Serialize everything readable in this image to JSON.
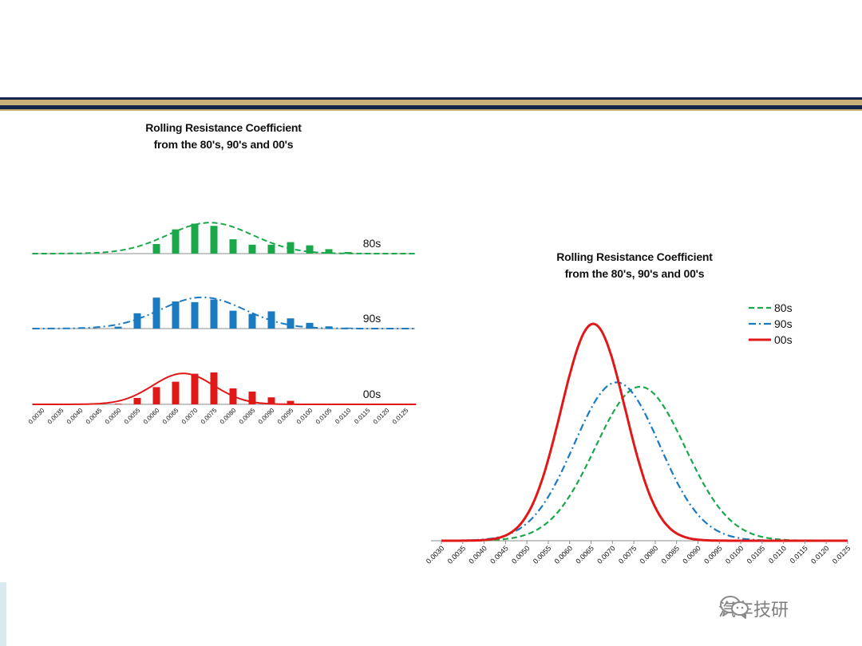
{
  "colors": {
    "green": "#1aa84a",
    "blue": "#1a7ac2",
    "red": "#e01818",
    "header_dark": "#15264a",
    "header_gold": "#c9b27a"
  },
  "watermark": {
    "text": "汽车技研",
    "icon": "wechat-icon"
  },
  "chart_data": [
    {
      "type": "bar",
      "title_lines": [
        "Rolling Resistance Coefficient",
        "from the 80's, 90's and 00's"
      ],
      "categories": [
        "0.0030",
        "0.0035",
        "0.0040",
        "0.0045",
        "0.0050",
        "0.0055",
        "0.0060",
        "0.0065",
        "0.0070",
        "0.0075",
        "0.0080",
        "0.0085",
        "0.0090",
        "0.0095",
        "0.0100",
        "0.0105",
        "0.0110",
        "0.0115",
        "0.0120",
        "0.0125"
      ],
      "panels": [
        {
          "name": "80s",
          "values": [
            0,
            0,
            0,
            0,
            0,
            0,
            0.3,
            0.76,
            0.94,
            0.87,
            0.45,
            0.28,
            0.28,
            0.36,
            0.26,
            0.14,
            0.05,
            0.02,
            0,
            0
          ],
          "curve_mean": 0.0074,
          "curve_sd": 0.0011,
          "curve_peak": 0.97,
          "line_style": "dashed"
        },
        {
          "name": "90s",
          "values": [
            0,
            0,
            0,
            0,
            0.06,
            0.48,
            0.97,
            0.85,
            0.83,
            0.91,
            0.56,
            0.46,
            0.54,
            0.32,
            0.18,
            0.07,
            0.03,
            0,
            0,
            0
          ],
          "curve_mean": 0.0072,
          "curve_sd": 0.0011,
          "curve_peak": 0.98,
          "line_style": "dashdot"
        },
        {
          "name": "00s",
          "values": [
            0,
            0,
            0,
            0,
            0.02,
            0.2,
            0.54,
            0.71,
            0.96,
            1.0,
            0.5,
            0.4,
            0.22,
            0.11,
            0.02,
            0,
            0,
            0,
            0,
            0
          ],
          "curve_mean": 0.0067,
          "curve_sd": 0.0008,
          "curve_peak": 0.97,
          "line_style": "solid"
        }
      ]
    },
    {
      "type": "line",
      "title_lines": [
        "Rolling Resistance Coefficient",
        "from the 80's, 90's and 00's"
      ],
      "x_ticks": [
        "0.0030",
        "0.0035",
        "0.0040",
        "0.0045",
        "0.0050",
        "0.0055",
        "0.0060",
        "0.0065",
        "0.0070",
        "0.0075",
        "0.0080",
        "0.0085",
        "0.0090",
        "0.0095",
        "0.0100",
        "0.0105",
        "0.0110",
        "0.0115",
        "0.0120",
        "0.0125"
      ],
      "xlim": [
        0.003,
        0.0125
      ],
      "ylim": [
        0,
        1.1
      ],
      "legend_position": "top-right",
      "series": [
        {
          "name": "80s",
          "mean": 0.00765,
          "sd": 0.00105,
          "peak": 0.71,
          "line_style": "dashed"
        },
        {
          "name": "90s",
          "mean": 0.0071,
          "sd": 0.001,
          "peak": 0.73,
          "line_style": "dashdot"
        },
        {
          "name": "00s",
          "mean": 0.00655,
          "sd": 0.00075,
          "peak": 1.0,
          "line_style": "solid"
        }
      ]
    }
  ]
}
